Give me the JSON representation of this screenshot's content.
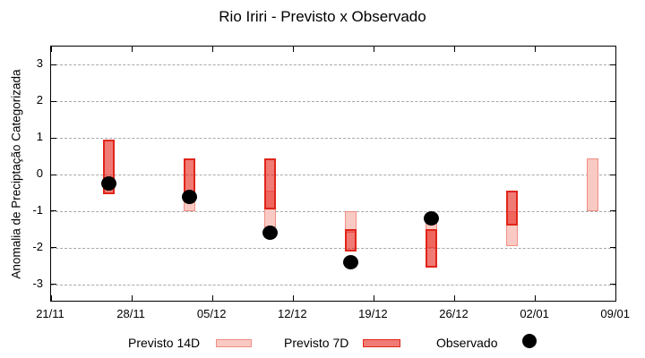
{
  "title": "Rio Iriri - Previsto x Observado",
  "y_axis": {
    "label": "Anomalia de Preciptação Categorizada",
    "ticks": [
      3,
      2,
      1,
      0,
      -1,
      -2,
      -3
    ],
    "min": -3.5,
    "max": 3.5
  },
  "x_axis": {
    "tick_labels": [
      "21/11",
      "28/11",
      "05/12",
      "12/12",
      "19/12",
      "26/12",
      "02/01",
      "09/01"
    ],
    "tick_days": [
      0,
      7,
      14,
      21,
      28,
      35,
      42,
      49
    ],
    "min_day": 0,
    "max_day": 49.1
  },
  "legend": {
    "items": [
      {
        "label": "Previsto 14D",
        "swatch": "box-light-pink"
      },
      {
        "label": "Previsto 7D",
        "swatch": "box-red"
      },
      {
        "label": "Observado",
        "swatch": "black-dot"
      }
    ]
  },
  "colors": {
    "forecast_14d_fill": "#f9cac3",
    "forecast_14d_border": "#ef8e84",
    "forecast_7d_fill": "rgba(230,35,25,0.6)",
    "forecast_7d_border": "#e0251a",
    "observed": "#000000",
    "gridline": "#a8a8a8"
  },
  "chart_data": {
    "type": "bar",
    "subtype": "forecast-range-boxes-with-observed-points",
    "title": "Rio Iriri - Previsto x Observado",
    "xlabel": "",
    "ylabel": "Anomalia de Preciptação Categorizada",
    "ylim": [
      -3.5,
      3.5
    ],
    "grid": "dashed-horizontal",
    "legend_position": "bottom",
    "points": [
      {
        "date": "26/11",
        "day": 5,
        "previsto_14d": null,
        "previsto_7d": [
          -0.55,
          0.95
        ],
        "observado": -0.25
      },
      {
        "date": "03/12",
        "day": 12,
        "previsto_14d": [
          -1.0,
          -0.45
        ],
        "previsto_7d": [
          -0.7,
          0.45
        ],
        "observado": -0.6
      },
      {
        "date": "10/12",
        "day": 19,
        "previsto_14d": [
          -1.45,
          -0.45
        ],
        "previsto_7d": [
          -0.95,
          0.45
        ],
        "observado": -1.6
      },
      {
        "date": "17/12",
        "day": 26,
        "previsto_14d": [
          -1.6,
          -1.0
        ],
        "previsto_7d": [
          -2.1,
          -1.5
        ],
        "observado": -2.4
      },
      {
        "date": "24/12",
        "day": 33,
        "previsto_14d": [
          -2.0,
          -1.3
        ],
        "previsto_7d": [
          -2.55,
          -1.5
        ],
        "observado": -1.2
      },
      {
        "date": "31/12",
        "day": 40,
        "previsto_14d": [
          -1.95,
          -1.0
        ],
        "previsto_7d": [
          -1.4,
          -0.45
        ],
        "observado": null
      },
      {
        "date": "07/01",
        "day": 47,
        "previsto_14d": [
          -1.0,
          0.45
        ],
        "previsto_7d": null,
        "observado": null
      }
    ]
  }
}
